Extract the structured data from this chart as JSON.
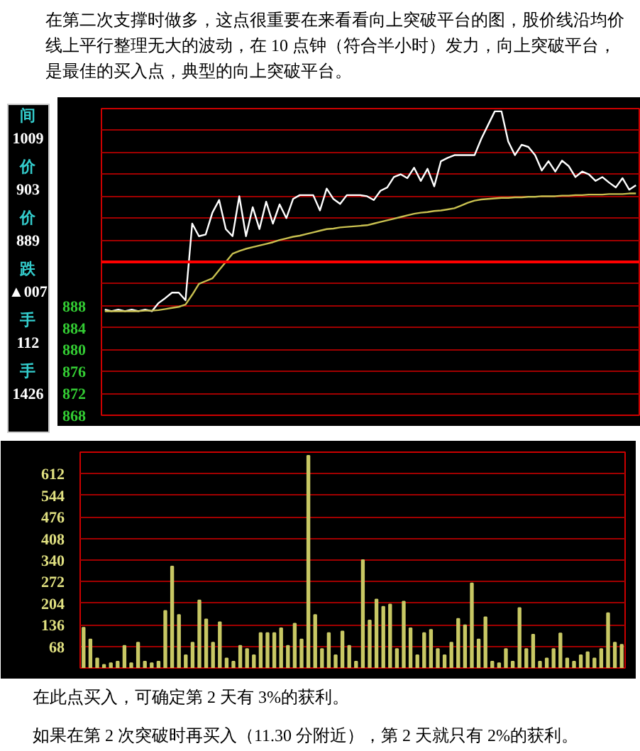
{
  "chart_data": [
    {
      "type": "other",
      "annotations": [
        "间",
        "1009",
        "价",
        "903",
        "价",
        "889",
        "跌",
        "▲007",
        "手",
        "112",
        "手",
        "1426"
      ]
    },
    {
      "type": "line",
      "title": "在第二次支撑时做多，这点很重要在来看看向上突破平台的图，股价线沿均价线上平行整理无大的波动，在 10 点钟（符合半小时）发力，向上突破平台，是最佳的买入点，典型的向上突破平台。",
      "categories": [
        null,
        null,
        null,
        null,
        null,
        null,
        null,
        null,
        null,
        null,
        null,
        null,
        null,
        null,
        null,
        null,
        null,
        null,
        null,
        null,
        null,
        null,
        null,
        null,
        null,
        null,
        null,
        null,
        null,
        null,
        null,
        null,
        null,
        null,
        null,
        null,
        null,
        null,
        null,
        null,
        null,
        null,
        null,
        null,
        null,
        null,
        null,
        null,
        null,
        null,
        null,
        null,
        null,
        null,
        null,
        null,
        null,
        null,
        null,
        null,
        null,
        null,
        null,
        null,
        null,
        null,
        null,
        null,
        null,
        null,
        null,
        null,
        null,
        null,
        null,
        null,
        null,
        null,
        null,
        null
      ],
      "series": [
        {
          "color": "#ffffff",
          "values": [
            887.3,
            887.0,
            887.3,
            887.0,
            887.3,
            887.0,
            887.3,
            887.0,
            888.5,
            889.4,
            890.4,
            890.4,
            889.0,
            903.0,
            900.7,
            901.0,
            905.0,
            907.3,
            902.0,
            900.7,
            908.0,
            900.7,
            906.0,
            902.0,
            907.0,
            903.0,
            906.5,
            904.0,
            907.5,
            908.2,
            908.2,
            908.2,
            905.4,
            909.4,
            907.5,
            906.6,
            908.2,
            908.2,
            908.2,
            908.0,
            907.3,
            909.0,
            909.6,
            911.5,
            912.0,
            911.3,
            913.2,
            910.8,
            913.0,
            909.8,
            914.4,
            915.0,
            915.5,
            915.5,
            915.5,
            915.5,
            918.5,
            921.0,
            923.5,
            923.5,
            918.0,
            915.5,
            917.4,
            917.0,
            915.5,
            912.7,
            914.4,
            912.5,
            914.5,
            913.5,
            911.5,
            912.5,
            912.0,
            910.8,
            911.5,
            910.5,
            909.6,
            911.3,
            909.2,
            910.0
          ]
        },
        {
          "color": "#c8c050",
          "values": [
            887.0,
            887.0,
            887.0,
            887.0,
            887.0,
            887.0,
            887.1,
            887.1,
            887.2,
            887.4,
            887.6,
            887.8,
            888.2,
            890.0,
            892.0,
            892.5,
            893.0,
            894.5,
            896.0,
            897.5,
            898.0,
            898.4,
            898.7,
            899.0,
            899.3,
            899.6,
            900.0,
            900.3,
            900.6,
            900.8,
            901.1,
            901.4,
            901.7,
            902.0,
            902.1,
            902.3,
            902.4,
            902.5,
            902.6,
            902.7,
            903.0,
            903.3,
            903.6,
            903.9,
            904.2,
            904.5,
            904.8,
            905.0,
            905.1,
            905.3,
            905.4,
            905.6,
            905.8,
            906.3,
            906.8,
            907.2,
            907.4,
            907.5,
            907.6,
            907.7,
            907.7,
            907.8,
            907.8,
            907.9,
            907.9,
            908.0,
            908.0,
            908.0,
            908.1,
            908.1,
            908.2,
            908.2,
            908.3,
            908.3,
            908.3,
            908.4,
            908.4,
            908.4,
            908.5,
            908.5
          ]
        }
      ],
      "ylim": [
        868,
        924
      ],
      "yticks": [
        868,
        872,
        876,
        880,
        884,
        888,
        {
          "value": 892,
          "label": null
        },
        {
          "value": 896,
          "label": null
        },
        {
          "value": 900,
          "label": null
        },
        {
          "value": 904,
          "label": null
        },
        {
          "value": 908,
          "label": null
        },
        {
          "value": 912,
          "label": null
        },
        {
          "value": 916,
          "label": null
        },
        {
          "value": 920,
          "label": null
        }
      ],
      "ref_lines": [
        {
          "axis": "y",
          "value": 896,
          "color": "#ff0000"
        }
      ],
      "grid": "y",
      "tick_labels": "y"
    },
    {
      "type": "bar",
      "categories": [
        null,
        null,
        null,
        null,
        null,
        null,
        null,
        null,
        null,
        null,
        null,
        null,
        null,
        null,
        null,
        null,
        null,
        null,
        null,
        null,
        null,
        null,
        null,
        null,
        null,
        null,
        null,
        null,
        null,
        null,
        null,
        null,
        null,
        null,
        null,
        null,
        null,
        null,
        null,
        null,
        null,
        null,
        null,
        null,
        null,
        null,
        null,
        null,
        null,
        null,
        null,
        null,
        null,
        null,
        null,
        null,
        null,
        null,
        null,
        null,
        null,
        null,
        null,
        null,
        null,
        null,
        null,
        null,
        null,
        null,
        null,
        null,
        null,
        null,
        null,
        null,
        null,
        null,
        null,
        null
      ],
      "color": "#c8c864",
      "values": [
        127,
        90,
        30,
        10,
        15,
        20,
        70,
        15,
        80,
        20,
        15,
        20,
        180,
        320,
        167,
        40,
        80,
        213,
        153,
        80,
        144,
        30,
        20,
        70,
        60,
        40,
        110,
        110,
        110,
        125,
        70,
        140,
        90,
        669,
        167,
        60,
        110,
        40,
        115,
        70,
        20,
        340,
        150,
        216,
        193,
        200,
        60,
        209,
        125,
        40,
        110,
        120,
        60,
        40,
        80,
        155,
        135,
        267,
        90,
        160,
        20,
        15,
        60,
        20,
        189,
        60,
        105,
        20,
        30,
        60,
        109,
        30,
        20,
        40,
        50,
        30,
        60,
        173,
        80,
        73
      ],
      "ylim": [
        0,
        680
      ],
      "yticks": [
        68,
        136,
        204,
        272,
        340,
        408,
        476,
        544,
        612
      ],
      "grid": "y",
      "tick_labels": "y",
      "annotations": [
        "在此点买入，可确定第 2 天有 3%的获利。",
        "如果在第 2 次突破时再买入（11.30 分附近），第 2 天就只有 2%的获利。"
      ]
    }
  ]
}
